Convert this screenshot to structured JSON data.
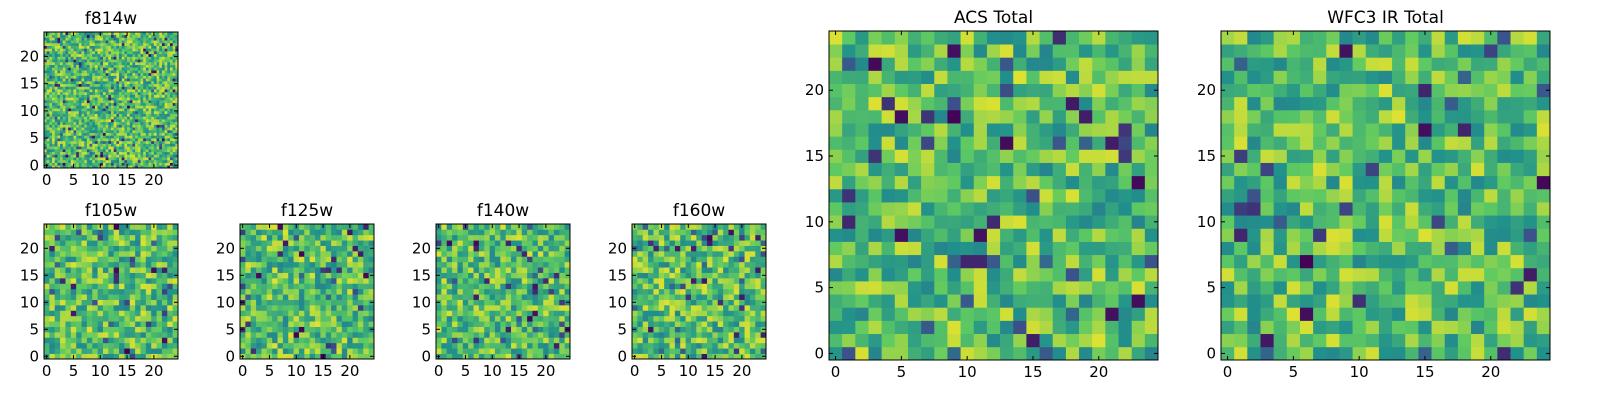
{
  "figure": {
    "colormap": [
      "#440154",
      "#3b528b",
      "#21918c",
      "#5ec962",
      "#fde725"
    ],
    "frame_color": "#000000",
    "background": "#ffffff"
  },
  "chart_data": [
    {
      "id": "f814w",
      "type": "heatmap",
      "title": "f814w",
      "xlabel": "",
      "ylabel": "",
      "grid_size": 50,
      "pixel_scale": 0.5,
      "xlim": [
        0,
        25
      ],
      "ylim": [
        0,
        25
      ],
      "x_ticks": [
        "0",
        "5",
        "10",
        "15",
        "20"
      ],
      "y_ticks": [
        "0",
        "5",
        "10",
        "15",
        "20"
      ],
      "legend": "none",
      "grid": false,
      "seed": 814
    },
    {
      "id": "f105w",
      "type": "heatmap",
      "title": "f105w",
      "xlabel": "",
      "ylabel": "",
      "grid_size": 25,
      "pixel_scale": 1,
      "xlim": [
        0,
        25
      ],
      "ylim": [
        0,
        25
      ],
      "x_ticks": [
        "0",
        "5",
        "10",
        "15",
        "20"
      ],
      "y_ticks": [
        "0",
        "5",
        "10",
        "15",
        "20"
      ],
      "legend": "none",
      "grid": false,
      "seed": 105
    },
    {
      "id": "f125w",
      "type": "heatmap",
      "title": "f125w",
      "xlabel": "",
      "ylabel": "",
      "grid_size": 25,
      "pixel_scale": 1,
      "xlim": [
        0,
        25
      ],
      "ylim": [
        0,
        25
      ],
      "x_ticks": [
        "0",
        "5",
        "10",
        "15",
        "20"
      ],
      "y_ticks": [
        "0",
        "5",
        "10",
        "15",
        "20"
      ],
      "legend": "none",
      "grid": false,
      "seed": 125
    },
    {
      "id": "f140w",
      "type": "heatmap",
      "title": "f140w",
      "xlabel": "",
      "ylabel": "",
      "grid_size": 25,
      "pixel_scale": 1,
      "xlim": [
        0,
        25
      ],
      "ylim": [
        0,
        25
      ],
      "x_ticks": [
        "0",
        "5",
        "10",
        "15",
        "20"
      ],
      "y_ticks": [
        "0",
        "5",
        "10",
        "15",
        "20"
      ],
      "legend": "none",
      "grid": false,
      "seed": 140
    },
    {
      "id": "f160w",
      "type": "heatmap",
      "title": "f160w",
      "xlabel": "",
      "ylabel": "",
      "grid_size": 25,
      "pixel_scale": 1,
      "xlim": [
        0,
        25
      ],
      "ylim": [
        0,
        25
      ],
      "x_ticks": [
        "0",
        "5",
        "10",
        "15",
        "20"
      ],
      "y_ticks": [
        "0",
        "5",
        "10",
        "15",
        "20"
      ],
      "legend": "none",
      "grid": false,
      "seed": 160
    },
    {
      "id": "acs-total",
      "type": "heatmap",
      "title": "ACS Total",
      "xlabel": "",
      "ylabel": "",
      "grid_size": 25,
      "pixel_scale": 1,
      "xlim": [
        0,
        25
      ],
      "ylim": [
        0,
        25
      ],
      "x_ticks": [
        "0",
        "5",
        "10",
        "15",
        "20"
      ],
      "y_ticks": [
        "0",
        "5",
        "10",
        "15",
        "20"
      ],
      "legend": "none",
      "grid": false,
      "seed": 2501
    },
    {
      "id": "wfc3-ir-total",
      "type": "heatmap",
      "title": "WFC3 IR Total",
      "xlabel": "",
      "ylabel": "",
      "grid_size": 25,
      "pixel_scale": 1,
      "xlim": [
        0,
        25
      ],
      "ylim": [
        0,
        25
      ],
      "x_ticks": [
        "0",
        "5",
        "10",
        "15",
        "20"
      ],
      "y_ticks": [
        "0",
        "5",
        "10",
        "15",
        "20"
      ],
      "legend": "none",
      "grid": false,
      "seed": 3003
    }
  ]
}
